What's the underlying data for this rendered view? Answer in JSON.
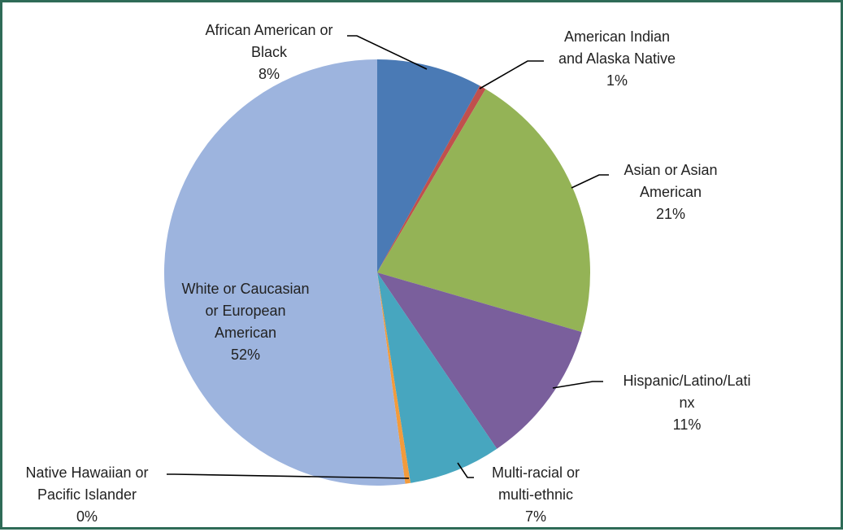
{
  "chart_data": {
    "type": "pie",
    "start_angle_deg": 0,
    "direction": "clockwise",
    "legend": "none",
    "slices": [
      {
        "id": "african-american",
        "label_lines": [
          "African American or",
          "Black"
        ],
        "pct_label": "8%",
        "value": 8,
        "color": "#4a7ab5"
      },
      {
        "id": "american-indian",
        "label_lines": [
          "American Indian",
          "and Alaska Native"
        ],
        "pct_label": "1%",
        "value": 0.5,
        "color": "#c0504d"
      },
      {
        "id": "asian",
        "label_lines": [
          "Asian or Asian",
          "American"
        ],
        "pct_label": "21%",
        "value": 21,
        "color": "#94b356"
      },
      {
        "id": "hispanic",
        "label_lines": [
          "Hispanic/Latino/Lati",
          "nx"
        ],
        "pct_label": "11%",
        "value": 11,
        "color": "#7a5f9c"
      },
      {
        "id": "multi-racial",
        "label_lines": [
          "Multi-racial or",
          "multi-ethnic"
        ],
        "pct_label": "7%",
        "value": 7,
        "color": "#47a6bf"
      },
      {
        "id": "native-hawaiian",
        "label_lines": [
          "Native Hawaiian or",
          "Pacific Islander"
        ],
        "pct_label": "0%",
        "value": 0.4,
        "color": "#f29b3c"
      },
      {
        "id": "white",
        "label_lines": [
          "White or Caucasian",
          "or European",
          "American"
        ],
        "pct_label": "52%",
        "value": 52.1,
        "color": "#9db4de"
      }
    ]
  }
}
